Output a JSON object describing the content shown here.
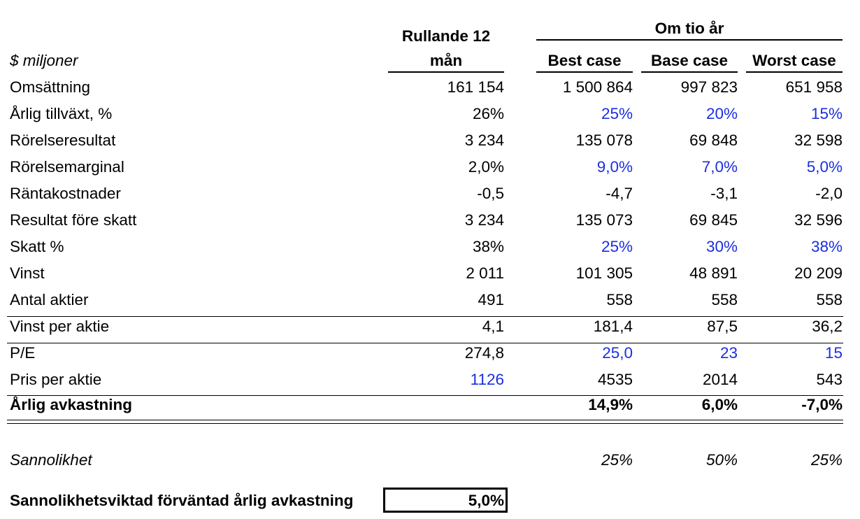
{
  "header": {
    "units_label": "$ miljoner",
    "rolling_line1": "Rullande 12",
    "rolling_line2": "mån",
    "group_label": "Om tio år",
    "best": "Best case",
    "base": "Base case",
    "worst": "Worst case"
  },
  "rows": [
    {
      "label": "Omsättning",
      "rolling": "161 154",
      "best": "1 500 864",
      "base": "997 823",
      "worst": "651 958",
      "blue": [
        false,
        false,
        false,
        false
      ]
    },
    {
      "label": "Årlig tillväxt, %",
      "rolling": "26%",
      "best": "25%",
      "base": "20%",
      "worst": "15%",
      "blue": [
        false,
        true,
        true,
        true
      ]
    },
    {
      "label": "Rörelseresultat",
      "rolling": "3 234",
      "best": "135 078",
      "base": "69 848",
      "worst": "32 598",
      "blue": [
        false,
        false,
        false,
        false
      ]
    },
    {
      "label": "Rörelsemarginal",
      "rolling": "2,0%",
      "best": "9,0%",
      "base": "7,0%",
      "worst": "5,0%",
      "blue": [
        false,
        true,
        true,
        true
      ]
    },
    {
      "label": "Räntakostnader",
      "rolling": "-0,5",
      "best": "-4,7",
      "base": "-3,1",
      "worst": "-2,0",
      "blue": [
        false,
        false,
        false,
        false
      ]
    },
    {
      "label": "Resultat före skatt",
      "rolling": "3 234",
      "best": "135 073",
      "base": "69 845",
      "worst": "32 596",
      "blue": [
        false,
        false,
        false,
        false
      ]
    },
    {
      "label": "Skatt %",
      "rolling": "38%",
      "best": "25%",
      "base": "30%",
      "worst": "38%",
      "blue": [
        false,
        true,
        true,
        true
      ]
    },
    {
      "label": "Vinst",
      "rolling": "2 011",
      "best": "101 305",
      "base": "48 891",
      "worst": "20 209",
      "blue": [
        false,
        false,
        false,
        false
      ]
    },
    {
      "label": "Antal aktier",
      "rolling": "491",
      "best": "558",
      "base": "558",
      "worst": "558",
      "blue": [
        false,
        false,
        false,
        false
      ]
    },
    {
      "label": "Vinst per aktie",
      "rolling": "4,1",
      "best": "181,4",
      "base": "87,5",
      "worst": "36,2",
      "blue": [
        false,
        false,
        false,
        false
      ]
    },
    {
      "label": "P/E",
      "rolling": "274,8",
      "best": "25,0",
      "base": "23",
      "worst": "15",
      "blue": [
        false,
        true,
        true,
        true
      ]
    },
    {
      "label": "Pris per aktie",
      "rolling": "1126",
      "best": "4535",
      "base": "2014",
      "worst": "543",
      "blue": [
        true,
        false,
        false,
        false
      ]
    }
  ],
  "annual_return": {
    "label": "Årlig avkastning",
    "best": "14,9%",
    "base": "6,0%",
    "worst": "-7,0%"
  },
  "probability": {
    "label": "Sannolikhet",
    "best": "25%",
    "base": "50%",
    "worst": "25%"
  },
  "weighted": {
    "label": "Sannolikhetsviktad förväntad årlig avkastning",
    "value": "5,0%"
  },
  "colors": {
    "blue_input": "#1a2fe0",
    "text": "#000000"
  }
}
